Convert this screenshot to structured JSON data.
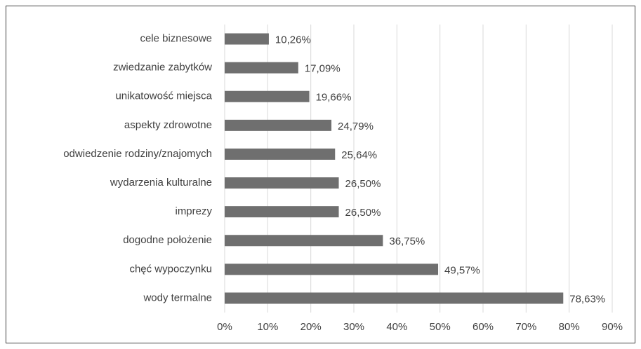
{
  "chart_data": {
    "type": "bar",
    "orientation": "horizontal",
    "categories": [
      "cele biznesowe",
      "zwiedzanie zabytków",
      "unikatowość miejsca",
      "aspekty zdrowotne",
      "odwiedzenie rodziny/znajomych",
      "wydarzenia kulturalne",
      "imprezy",
      "dogodne położenie",
      "chęć wypoczynku",
      "wody termalne"
    ],
    "values": [
      10.26,
      17.09,
      19.66,
      24.79,
      25.64,
      26.5,
      26.5,
      36.75,
      49.57,
      78.63
    ],
    "value_labels": [
      "10,26%",
      "17,09%",
      "19,66%",
      "24,79%",
      "25,64%",
      "26,50%",
      "26,50%",
      "36,75%",
      "49,57%",
      "78,63%"
    ],
    "color": "#6f6f6f",
    "xlim": [
      0,
      90
    ],
    "xticks": [
      {
        "value": 0,
        "label": "0%"
      },
      {
        "value": 10,
        "label": "10%"
      },
      {
        "value": 20,
        "label": "20%"
      },
      {
        "value": 30,
        "label": "30%"
      },
      {
        "value": 40,
        "label": "40%"
      },
      {
        "value": 50,
        "label": "50%"
      },
      {
        "value": 60,
        "label": "60%"
      },
      {
        "value": 70,
        "label": "70%"
      },
      {
        "value": 80,
        "label": "80%"
      },
      {
        "value": 90,
        "label": "90%"
      }
    ],
    "grid": true
  }
}
